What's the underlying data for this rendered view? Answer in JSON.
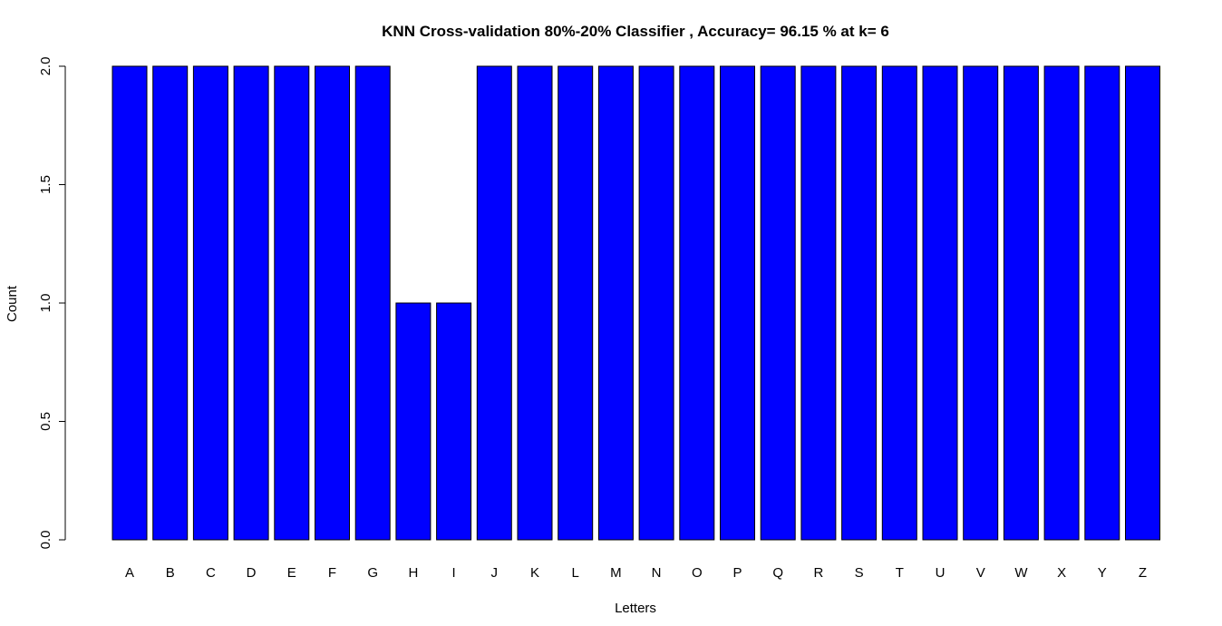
{
  "chart_data": {
    "type": "bar",
    "title": "KNN Cross-validation 80%-20% Classifier , Accuracy= 96.15 % at k= 6",
    "xlabel": "Letters",
    "ylabel": "Count",
    "categories": [
      "A",
      "B",
      "C",
      "D",
      "E",
      "F",
      "G",
      "H",
      "I",
      "J",
      "K",
      "L",
      "M",
      "N",
      "O",
      "P",
      "Q",
      "R",
      "S",
      "T",
      "U",
      "V",
      "W",
      "X",
      "Y",
      "Z"
    ],
    "values": [
      2,
      2,
      2,
      2,
      2,
      2,
      2,
      1,
      1,
      2,
      2,
      2,
      2,
      2,
      2,
      2,
      2,
      2,
      2,
      2,
      2,
      2,
      2,
      2,
      2,
      2
    ],
    "ylim": [
      0,
      2
    ],
    "yticks": [
      0,
      0.5,
      1,
      1.5,
      2
    ],
    "ytick_labels": [
      "0.0",
      "0.5",
      "1.0",
      "1.5",
      "2.0"
    ],
    "grid": false,
    "bar_color": "#0000ff",
    "bar_edge_color": "#000000"
  }
}
